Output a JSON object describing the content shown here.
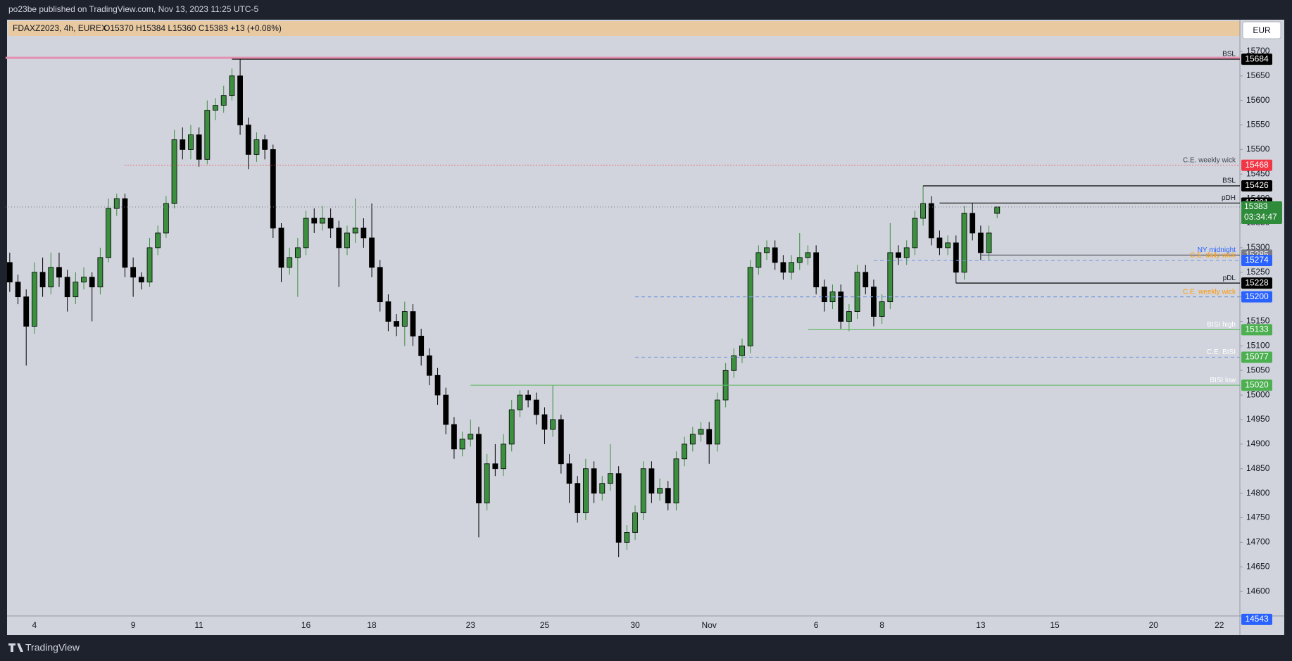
{
  "header": {
    "published": "po23be published on TradingView.com, Nov 13, 2023 11:25 UTC-5",
    "symbol": "FDAXZ2023, 4h, EUREX",
    "quote": "O15370 H15384 L15360 C15383 +13 (+0.08%)",
    "currency": "EUR",
    "footer": "TradingView"
  },
  "chart_data": {
    "type": "candlestick",
    "up_color": "#3b8f3f",
    "down_color": "#000000",
    "grid": false,
    "ylim": [
      14550,
      15730
    ],
    "yticks": [
      14600,
      14650,
      14700,
      14750,
      14800,
      14850,
      14900,
      14950,
      15000,
      15050,
      15100,
      15150,
      15200,
      15250,
      15300,
      15350,
      15400,
      15450,
      15500,
      15550,
      15600,
      15650,
      15700
    ],
    "categories": [
      null,
      null,
      null,
      "4",
      null,
      null,
      null,
      null,
      null,
      null,
      null,
      null,
      null,
      null,
      null,
      "9",
      null,
      null,
      null,
      null,
      null,
      null,
      null,
      "11",
      null,
      null,
      null,
      null,
      null,
      null,
      null,
      null,
      null,
      null,
      null,
      null,
      "16",
      null,
      null,
      null,
      null,
      null,
      null,
      null,
      "18",
      null,
      null,
      null,
      null,
      null,
      null,
      null,
      null,
      null,
      null,
      null,
      "23",
      null,
      null,
      null,
      null,
      null,
      null,
      null,
      null,
      "25",
      null,
      null,
      null,
      null,
      null,
      null,
      null,
      null,
      null,
      null,
      "30",
      null,
      null,
      null,
      null,
      null,
      null,
      null,
      null,
      "Nov",
      null,
      null,
      null,
      null,
      null,
      null,
      null,
      null,
      null,
      null,
      null,
      null,
      "6",
      null,
      null,
      null,
      null,
      null,
      null,
      null,
      "8",
      null,
      null,
      null,
      null,
      null,
      null,
      null,
      null,
      null,
      null,
      null,
      "13",
      null,
      null,
      null,
      null,
      null,
      null,
      null,
      null,
      "15",
      null,
      null,
      null,
      null,
      null,
      null,
      null,
      null,
      null,
      null,
      null,
      "20",
      null,
      null,
      null,
      null,
      null,
      null,
      null,
      "22",
      null,
      null
    ],
    "values": [
      [
        15270,
        15290,
        15210,
        15230
      ],
      [
        15230,
        15245,
        15185,
        15200
      ],
      [
        15200,
        15215,
        15060,
        15140
      ],
      [
        15140,
        15270,
        15125,
        15250
      ],
      [
        15250,
        15280,
        15200,
        15220
      ],
      [
        15220,
        15290,
        15205,
        15260
      ],
      [
        15260,
        15290,
        15220,
        15240
      ],
      [
        15240,
        15255,
        15170,
        15200
      ],
      [
        15200,
        15250,
        15185,
        15230
      ],
      [
        15230,
        15260,
        15215,
        15240
      ],
      [
        15240,
        15250,
        15150,
        15220
      ],
      [
        15220,
        15300,
        15205,
        15280
      ],
      [
        15280,
        15400,
        15270,
        15380
      ],
      [
        15380,
        15410,
        15365,
        15400
      ],
      [
        15400,
        15410,
        15240,
        15260
      ],
      [
        15260,
        15280,
        15200,
        15240
      ],
      [
        15240,
        15250,
        15215,
        15230
      ],
      [
        15230,
        15320,
        15220,
        15300
      ],
      [
        15300,
        15345,
        15285,
        15330
      ],
      [
        15330,
        15405,
        15320,
        15390
      ],
      [
        15390,
        15540,
        15380,
        15520
      ],
      [
        15520,
        15545,
        15480,
        15500
      ],
      [
        15500,
        15550,
        15480,
        15530
      ],
      [
        15530,
        15545,
        15465,
        15480
      ],
      [
        15480,
        15600,
        15470,
        15580
      ],
      [
        15580,
        15605,
        15560,
        15590
      ],
      [
        15590,
        15630,
        15575,
        15610
      ],
      [
        15610,
        15665,
        15600,
        15650
      ],
      [
        15650,
        15684,
        15530,
        15550
      ],
      [
        15550,
        15565,
        15460,
        15490
      ],
      [
        15490,
        15535,
        15475,
        15520
      ],
      [
        15520,
        15530,
        15480,
        15500
      ],
      [
        15500,
        15510,
        15320,
        15340
      ],
      [
        15340,
        15350,
        15230,
        15260
      ],
      [
        15260,
        15300,
        15245,
        15280
      ],
      [
        15280,
        15320,
        15200,
        15300
      ],
      [
        15300,
        15375,
        15285,
        15360
      ],
      [
        15360,
        15380,
        15330,
        15350
      ],
      [
        15350,
        15385,
        15335,
        15360
      ],
      [
        15360,
        15380,
        15320,
        15340
      ],
      [
        15340,
        15355,
        15220,
        15300
      ],
      [
        15300,
        15345,
        15285,
        15330
      ],
      [
        15330,
        15400,
        15310,
        15340
      ],
      [
        15340,
        15360,
        15300,
        15320
      ],
      [
        15320,
        15390,
        15240,
        15260
      ],
      [
        15260,
        15275,
        15170,
        15190
      ],
      [
        15190,
        15205,
        15130,
        15150
      ],
      [
        15150,
        15165,
        15120,
        15140
      ],
      [
        15140,
        15190,
        15100,
        15170
      ],
      [
        15170,
        15185,
        15100,
        15120
      ],
      [
        15120,
        15135,
        15060,
        15080
      ],
      [
        15080,
        15095,
        15020,
        15040
      ],
      [
        15040,
        15055,
        14980,
        15000
      ],
      [
        15000,
        15015,
        14920,
        14940
      ],
      [
        14940,
        14955,
        14870,
        14890
      ],
      [
        14890,
        14925,
        14875,
        14910
      ],
      [
        14910,
        14950,
        14895,
        14920
      ],
      [
        14920,
        14935,
        14710,
        14780
      ],
      [
        14780,
        14880,
        14765,
        14860
      ],
      [
        14860,
        14900,
        14835,
        14850
      ],
      [
        14850,
        14920,
        14835,
        14900
      ],
      [
        14900,
        14990,
        14885,
        14970
      ],
      [
        14970,
        15010,
        14955,
        15000
      ],
      [
        15000,
        15010,
        14975,
        14990
      ],
      [
        14990,
        15005,
        14940,
        14960
      ],
      [
        14960,
        14975,
        14900,
        14930
      ],
      [
        14930,
        15020,
        14915,
        14950
      ],
      [
        14950,
        14960,
        14840,
        14860
      ],
      [
        14860,
        14880,
        14780,
        14820
      ],
      [
        14820,
        14835,
        14740,
        14760
      ],
      [
        14760,
        14870,
        14745,
        14850
      ],
      [
        14850,
        14865,
        14780,
        14800
      ],
      [
        14800,
        14835,
        14785,
        14820
      ],
      [
        14820,
        14900,
        14805,
        14840
      ],
      [
        14840,
        14855,
        14670,
        14700
      ],
      [
        14700,
        14735,
        14685,
        14720
      ],
      [
        14720,
        14775,
        14705,
        14760
      ],
      [
        14760,
        14865,
        14745,
        14850
      ],
      [
        14850,
        14865,
        14780,
        14800
      ],
      [
        14800,
        14830,
        14785,
        14810
      ],
      [
        14810,
        14825,
        14765,
        14780
      ],
      [
        14780,
        14885,
        14765,
        14870
      ],
      [
        14870,
        14915,
        14855,
        14900
      ],
      [
        14900,
        14935,
        14885,
        14920
      ],
      [
        14920,
        14945,
        14905,
        14930
      ],
      [
        14930,
        14945,
        14860,
        14900
      ],
      [
        14900,
        15005,
        14885,
        14990
      ],
      [
        14990,
        15065,
        14975,
        15050
      ],
      [
        15050,
        15095,
        15035,
        15080
      ],
      [
        15080,
        15115,
        15065,
        15100
      ],
      [
        15100,
        15275,
        15085,
        15260
      ],
      [
        15260,
        15305,
        15245,
        15290
      ],
      [
        15290,
        15315,
        15275,
        15300
      ],
      [
        15300,
        15315,
        15255,
        15270
      ],
      [
        15270,
        15285,
        15235,
        15250
      ],
      [
        15250,
        15285,
        15235,
        15270
      ],
      [
        15270,
        15330,
        15255,
        15280
      ],
      [
        15280,
        15305,
        15265,
        15290
      ],
      [
        15290,
        15305,
        15205,
        15220
      ],
      [
        15220,
        15235,
        15170,
        15190
      ],
      [
        15190,
        15225,
        15175,
        15210
      ],
      [
        15210,
        15225,
        15135,
        15150
      ],
      [
        15150,
        15185,
        15130,
        15170
      ],
      [
        15170,
        15265,
        15155,
        15250
      ],
      [
        15250,
        15265,
        15205,
        15220
      ],
      [
        15220,
        15235,
        15140,
        15160
      ],
      [
        15160,
        15205,
        15145,
        15190
      ],
      [
        15190,
        15350,
        15175,
        15290
      ],
      [
        15290,
        15305,
        15265,
        15280
      ],
      [
        15280,
        15315,
        15265,
        15300
      ],
      [
        15300,
        15375,
        15285,
        15360
      ],
      [
        15360,
        15426,
        15345,
        15390
      ],
      [
        15390,
        15405,
        15305,
        15320
      ],
      [
        15320,
        15335,
        15285,
        15300
      ],
      [
        15300,
        15325,
        15285,
        15310
      ],
      [
        15310,
        15325,
        15228,
        15250
      ],
      [
        15250,
        15385,
        15235,
        15370
      ],
      [
        15370,
        15391,
        15315,
        15330
      ],
      [
        15330,
        15345,
        15275,
        15290
      ],
      [
        15290,
        15345,
        15275,
        15330
      ],
      [
        15370,
        15384,
        15360,
        15383
      ],
      null,
      null,
      null,
      null,
      null,
      null,
      null,
      null,
      null,
      null,
      null,
      null,
      null,
      null,
      null,
      null,
      null,
      null,
      null,
      null,
      null,
      null,
      null,
      null,
      null,
      null,
      null,
      null,
      null
    ],
    "levels": [
      {
        "label": "BSL",
        "value": 15684,
        "color": "#000000",
        "line_color": "#000000",
        "band_color": "#e58fb0",
        "style": "solid",
        "text_color": "#131722"
      },
      {
        "label": "C.E. weekly wick",
        "value": 15468,
        "color": "#f23645",
        "line_color": "#f23645",
        "style": "dotted",
        "text_color": "#434651"
      },
      {
        "label": "BSL",
        "value": 15426,
        "color": "#000000",
        "line_color": "#000000",
        "style": "solid",
        "text_color": "#131722"
      },
      {
        "label": "pDH",
        "value": 15391,
        "color": "#000000",
        "line_color": "#000000",
        "style": "solid",
        "text_color": "#131722"
      },
      {
        "label": "NY midnight",
        "value": 15285,
        "color": "#787b86",
        "line_color": "#5d606b",
        "style": "solid",
        "text_color": "#2962ff"
      },
      {
        "label": "C.E. daily wick",
        "value": 15274,
        "color": "#2962ff",
        "line_color": "#7a9ce0",
        "style": "dashed",
        "text_color": "#ff9800"
      },
      {
        "label": "pDL",
        "value": 15228,
        "color": "#000000",
        "line_color": "#000000",
        "style": "solid",
        "text_color": "#131722"
      },
      {
        "label": "C.E. weekly wick",
        "value": 15200,
        "color": "#2962ff",
        "line_color": "#7a9ce0",
        "style": "dashed",
        "text_color": "#ff9800"
      },
      {
        "label": "BISI high",
        "value": 15133,
        "color": "#4caf50",
        "line_color": "#66bb6a",
        "style": "solid",
        "text_color": "#ffffff"
      },
      {
        "label": "C.E. BISI",
        "value": 15077,
        "color": "#4caf50",
        "line_color": "#7a9ce0",
        "style": "dashed",
        "text_color": "#ffffff"
      },
      {
        "label": "BISI low",
        "value": 15020,
        "color": "#4caf50",
        "line_color": "#66bb6a",
        "style": "solid",
        "text_color": "#ffffff"
      }
    ],
    "last_price": {
      "value": 15383,
      "countdown": "03:34:47",
      "color": "#2e8b3a",
      "line_color": "#787b86"
    },
    "cursor_price": {
      "value": 14543,
      "color": "#2962ff"
    }
  }
}
